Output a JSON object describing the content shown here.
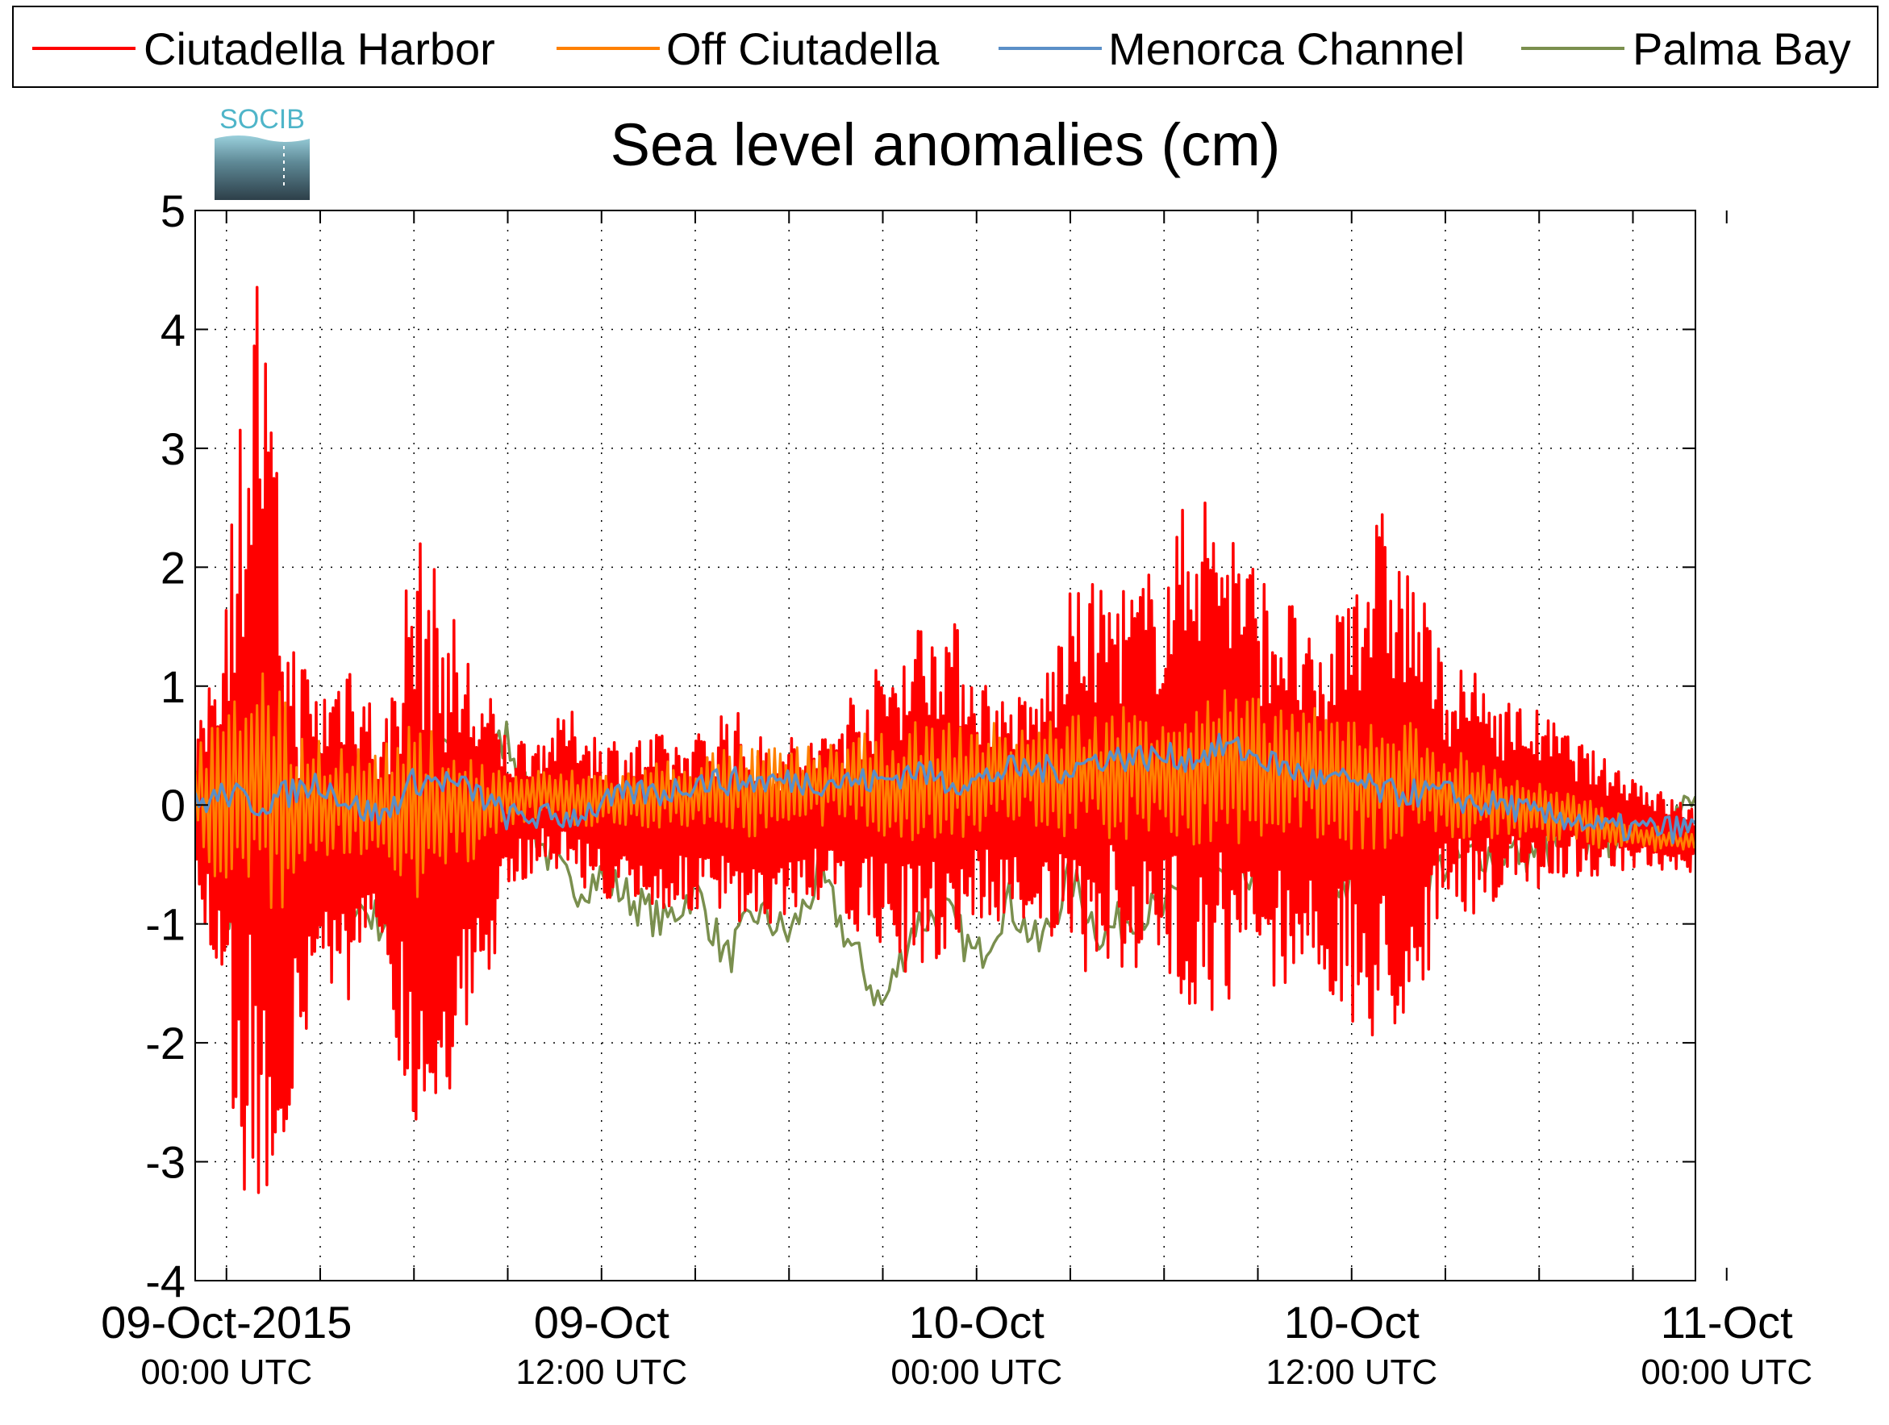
{
  "chart_data": {
    "type": "line",
    "title": "Sea level anomalies (cm)",
    "xlabel": "",
    "ylabel": "",
    "logo": "SOCIB",
    "ylim": [
      -4,
      5
    ],
    "yticks": [
      5,
      4,
      3,
      2,
      1,
      0,
      -1,
      -2,
      -3,
      -4
    ],
    "xlim_hours": [
      -1,
      47
    ],
    "x_tick_labels": [
      {
        "hours": 0,
        "date": "09-Oct-2015",
        "time": "00:00 UTC"
      },
      {
        "hours": 12,
        "date": "09-Oct",
        "time": "12:00 UTC"
      },
      {
        "hours": 24,
        "date": "10-Oct",
        "time": "00:00 UTC"
      },
      {
        "hours": 36,
        "date": "10-Oct",
        "time": "12:00 UTC"
      },
      {
        "hours": 48,
        "date": "11-Oct",
        "time": "00:00 UTC"
      }
    ],
    "x_minor_ticks_hours": [
      3,
      6,
      9,
      15,
      18,
      21,
      27,
      30,
      33,
      39,
      42,
      45
    ],
    "grid": true,
    "legend_position": "top",
    "series": [
      {
        "name": "Ciutadella Harbor",
        "color": "#ff0000",
        "x": [
          -1,
          0,
          1,
          2,
          3,
          4,
          5,
          6,
          7,
          8,
          9,
          10,
          11,
          12,
          13,
          14,
          15,
          16,
          17,
          18,
          19,
          20,
          21,
          22,
          23,
          24,
          25,
          26,
          27,
          28,
          29,
          30,
          31,
          32,
          33,
          34,
          35,
          36,
          37,
          38,
          39,
          40,
          41,
          42,
          43,
          44,
          45,
          46,
          47
        ],
        "envelope_upper": [
          0.4,
          2.2,
          4.8,
          1.6,
          1.0,
          1.5,
          0.6,
          2.4,
          1.8,
          1.2,
          0.6,
          0.6,
          0.8,
          0.6,
          0.6,
          0.6,
          0.6,
          0.9,
          0.6,
          0.6,
          0.6,
          1.0,
          1.2,
          1.6,
          1.7,
          1.2,
          0.9,
          1.0,
          1.8,
          1.9,
          1.9,
          2.1,
          2.8,
          2.6,
          2.0,
          1.8,
          1.2,
          2.3,
          2.5,
          2.0,
          1.2,
          1.1,
          0.9,
          0.8,
          0.6,
          0.4,
          0.3,
          0.1,
          0.0
        ],
        "envelope_lower": [
          -0.5,
          -2.5,
          -3.8,
          -2.8,
          -1.4,
          -1.8,
          -1.2,
          -3.0,
          -2.5,
          -1.9,
          -0.8,
          -0.5,
          -0.6,
          -0.8,
          -0.9,
          -0.9,
          -0.9,
          -1.0,
          -1.1,
          -0.9,
          -0.8,
          -1.1,
          -1.2,
          -1.5,
          -1.3,
          -1.0,
          -1.0,
          -1.0,
          -1.5,
          -1.4,
          -1.4,
          -1.6,
          -1.7,
          -1.8,
          -1.6,
          -1.5,
          -1.5,
          -2.0,
          -2.1,
          -1.8,
          -1.0,
          -0.9,
          -0.8,
          -0.7,
          -0.6,
          -0.6,
          -0.6,
          -0.6,
          -0.6
        ]
      },
      {
        "name": "Off Ciutadella",
        "color": "#ff8000",
        "x": [
          -1,
          0,
          1,
          2,
          3,
          4,
          5,
          6,
          7,
          8,
          9,
          10,
          11,
          12,
          13,
          14,
          15,
          16,
          17,
          18,
          19,
          20,
          21,
          22,
          23,
          24,
          25,
          26,
          27,
          28,
          29,
          30,
          31,
          32,
          33,
          34,
          35,
          36,
          37,
          38,
          39,
          40,
          41,
          42,
          43,
          44,
          45,
          46,
          47
        ],
        "envelope_upper": [
          0.5,
          0.8,
          1.4,
          0.8,
          0.6,
          0.5,
          0.5,
          0.7,
          0.6,
          0.4,
          0.3,
          0.3,
          0.3,
          0.3,
          0.3,
          0.4,
          0.4,
          0.5,
          0.5,
          0.5,
          0.5,
          0.6,
          0.6,
          0.7,
          0.7,
          0.7,
          0.7,
          0.7,
          0.8,
          0.8,
          0.9,
          0.9,
          0.9,
          1.0,
          0.9,
          0.9,
          0.8,
          0.8,
          0.8,
          0.7,
          0.5,
          0.4,
          0.3,
          0.2,
          0.1,
          0.0,
          -0.1,
          -0.2,
          -0.2
        ],
        "envelope_lower": [
          -0.3,
          -0.8,
          -1.0,
          -0.9,
          -0.5,
          -0.5,
          -0.4,
          -0.8,
          -0.6,
          -0.5,
          -0.2,
          -0.1,
          -0.2,
          -0.2,
          -0.2,
          -0.2,
          -0.2,
          -0.2,
          -0.3,
          -0.2,
          -0.2,
          -0.2,
          -0.3,
          -0.3,
          -0.3,
          -0.3,
          -0.2,
          -0.2,
          -0.3,
          -0.3,
          -0.3,
          -0.3,
          -0.4,
          -0.4,
          -0.3,
          -0.3,
          -0.3,
          -0.4,
          -0.4,
          -0.3,
          -0.3,
          -0.3,
          -0.3,
          -0.3,
          -0.3,
          -0.4,
          -0.4,
          -0.4,
          -0.4
        ]
      },
      {
        "name": "Menorca Channel",
        "color": "#5b8fc7",
        "x": [
          -1,
          0,
          1,
          2,
          3,
          4,
          5,
          6,
          7,
          8,
          9,
          10,
          11,
          12,
          13,
          14,
          15,
          16,
          17,
          18,
          19,
          20,
          21,
          22,
          23,
          24,
          25,
          26,
          27,
          28,
          29,
          30,
          31,
          32,
          33,
          34,
          35,
          36,
          37,
          38,
          39,
          40,
          41,
          42,
          43,
          44,
          45,
          46,
          47
        ],
        "values": [
          0.0,
          0.1,
          0.0,
          0.1,
          0.2,
          0.0,
          -0.1,
          0.2,
          0.2,
          0.1,
          -0.1,
          -0.1,
          -0.1,
          0.0,
          0.1,
          0.1,
          0.2,
          0.2,
          0.2,
          0.2,
          0.2,
          0.2,
          0.2,
          0.3,
          0.2,
          0.2,
          0.3,
          0.3,
          0.3,
          0.4,
          0.4,
          0.4,
          0.4,
          0.5,
          0.4,
          0.3,
          0.2,
          0.2,
          0.1,
          0.1,
          0.1,
          0.0,
          0.0,
          -0.1,
          -0.1,
          -0.2,
          -0.2,
          -0.2,
          -0.2
        ]
      },
      {
        "name": "Palma Bay",
        "color": "#7a8f4e",
        "x": [
          -1,
          -0.5,
          0,
          0.5,
          1,
          1.5,
          2,
          2.5,
          3,
          3.5,
          4,
          5,
          6,
          7,
          8,
          9,
          10,
          11,
          12,
          13,
          14,
          15,
          16,
          17,
          18,
          19,
          20,
          21,
          22,
          23,
          24,
          25,
          26,
          27,
          28,
          29,
          30,
          31,
          32,
          33,
          34,
          35,
          36,
          37,
          38,
          39,
          40,
          41,
          42,
          43,
          44,
          45,
          46,
          47
        ],
        "values": [
          0.0,
          -0.5,
          -1.2,
          -0.3,
          0.8,
          -1.2,
          -0.4,
          -1.0,
          -0.5,
          -0.2,
          -0.8,
          -1.0,
          -0.4,
          0.5,
          0.2,
          0.6,
          -0.3,
          -0.7,
          -0.6,
          -0.8,
          -1.0,
          -0.7,
          -1.3,
          -0.9,
          -1.1,
          -0.6,
          -1.2,
          -1.7,
          -1.0,
          -0.9,
          -1.3,
          -0.8,
          -1.2,
          -0.6,
          -1.1,
          -0.9,
          -0.9,
          -0.6,
          -0.7,
          -0.5,
          -0.3,
          -0.6,
          -0.7,
          -0.5,
          -0.6,
          -0.5,
          -0.4,
          -0.4,
          -0.4,
          -0.3,
          -0.3,
          -0.2,
          -0.1,
          0.0
        ]
      }
    ]
  }
}
